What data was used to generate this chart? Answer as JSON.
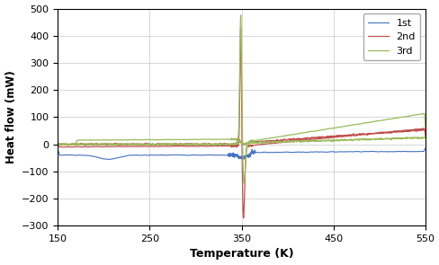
{
  "title": "",
  "xlabel": "Temperature (K)",
  "ylabel": "Heat flow (mW)",
  "xlim": [
    150,
    550
  ],
  "ylim": [
    -300,
    500
  ],
  "xticks": [
    150,
    250,
    350,
    450,
    550
  ],
  "yticks": [
    -300,
    -200,
    -100,
    0,
    100,
    200,
    300,
    400,
    500
  ],
  "colors": {
    "1st": "#4472c4",
    "2nd": "#c0504d",
    "3rd": "#9bbb59"
  },
  "grid": true,
  "legend_labels": [
    "1st",
    "2nd",
    "3rd"
  ],
  "eutectic_temp": 350,
  "background_color": "#ffffff"
}
